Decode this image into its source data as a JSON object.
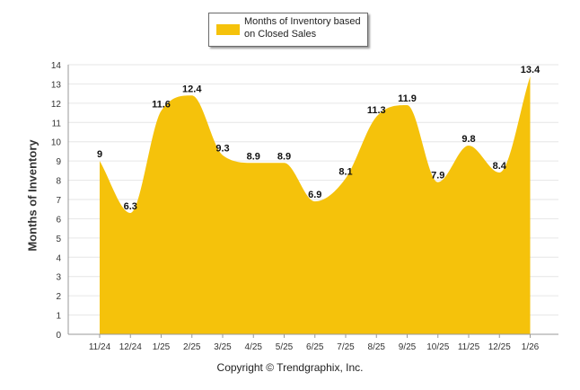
{
  "chart_data": {
    "type": "area",
    "title": "",
    "xlabel": "",
    "ylabel": "Months of Inventory",
    "categories": [
      "11/24",
      "12/24",
      "1/25",
      "2/25",
      "3/25",
      "4/25",
      "5/25",
      "6/25",
      "7/25",
      "8/25",
      "9/25",
      "10/25",
      "11/25",
      "12/25",
      "1/26"
    ],
    "series": [
      {
        "name": "Months of Inventory based on Closed Sales",
        "values": [
          9,
          6.3,
          11.6,
          12.4,
          9.3,
          8.9,
          8.9,
          6.9,
          8.1,
          11.3,
          11.9,
          7.9,
          9.8,
          8.4,
          13.4
        ],
        "labels": [
          "9",
          "6.3",
          "11.6",
          "12.4",
          "9.3",
          "8.9",
          "8.9",
          "6.9",
          "8.1",
          "11.3",
          "11.9",
          "7.9",
          "9.8",
          "8.4",
          "13.4"
        ],
        "color": "#f5c20b"
      }
    ],
    "ylim": [
      0,
      14
    ],
    "yticks": [
      "0",
      "1",
      "2",
      "3",
      "4",
      "5",
      "6",
      "7",
      "8",
      "9",
      "10",
      "11",
      "12",
      "13",
      "14"
    ],
    "grid": true,
    "legend_position": "top-center"
  },
  "legend": {
    "label": "Months of Inventory based on Closed Sales"
  },
  "footer": {
    "copyright": "Copyright © Trendgraphix, Inc."
  },
  "colors": {
    "area": "#f5c20b",
    "grid": "#e6e6e6",
    "axis": "#999999"
  }
}
